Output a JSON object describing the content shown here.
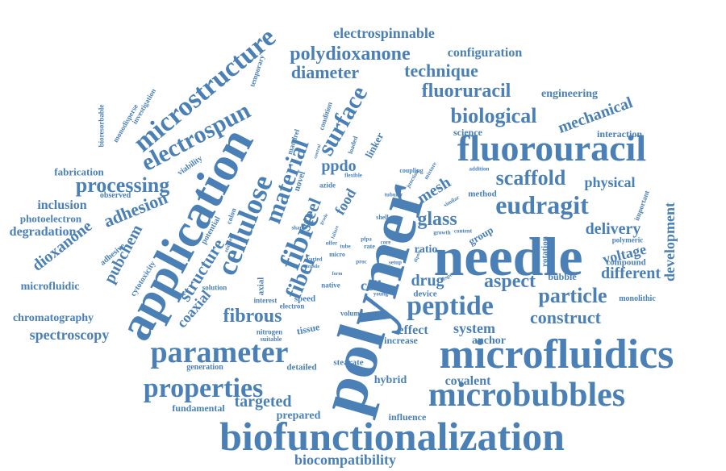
{
  "accent_color": "#4a80b5",
  "background": "#ffffff",
  "words": [
    {
      "text": "polymer"
    },
    {
      "text": "needle"
    },
    {
      "text": "application"
    },
    {
      "text": "microfluidics"
    },
    {
      "text": "biofunctionalization"
    },
    {
      "text": "fluorouracil"
    },
    {
      "text": "microbubbles"
    },
    {
      "text": "parameter"
    },
    {
      "text": "properties"
    },
    {
      "text": "cellulose"
    },
    {
      "text": "microstructure"
    },
    {
      "text": "peptide"
    },
    {
      "text": "fibre"
    },
    {
      "text": "material"
    },
    {
      "text": "eudragit"
    },
    {
      "text": "electrospun"
    },
    {
      "text": "surface"
    },
    {
      "text": "polydioxanone"
    },
    {
      "text": "biological"
    },
    {
      "text": "fluoruracil"
    },
    {
      "text": "scaffold"
    },
    {
      "text": "processing"
    },
    {
      "text": "particle"
    },
    {
      "text": "construct"
    },
    {
      "text": "fibrous"
    },
    {
      "text": "fiber"
    },
    {
      "text": "aspect"
    },
    {
      "text": "steel"
    },
    {
      "text": "adhesion"
    },
    {
      "text": "structure"
    },
    {
      "text": "technique"
    },
    {
      "text": "diameter"
    },
    {
      "text": "mechanical"
    },
    {
      "text": "glass"
    },
    {
      "text": "delivery"
    },
    {
      "text": "dioxanone"
    },
    {
      "text": "targeted"
    },
    {
      "text": "different"
    },
    {
      "text": "development"
    },
    {
      "text": "spectroscopy"
    },
    {
      "text": "biocompatibility"
    },
    {
      "text": "electrospinnable"
    },
    {
      "text": "configuration"
    },
    {
      "text": "mesh"
    },
    {
      "text": "physical"
    },
    {
      "text": "pubchem"
    },
    {
      "text": "drug"
    },
    {
      "text": "system"
    },
    {
      "text": "voltage"
    },
    {
      "text": "ppdo"
    },
    {
      "text": "food"
    },
    {
      "text": "coaxial"
    },
    {
      "text": "degradation"
    },
    {
      "text": "chromatography"
    },
    {
      "text": "inclusion"
    },
    {
      "text": "covalent"
    },
    {
      "text": "cell"
    },
    {
      "text": "ratio"
    },
    {
      "text": "effect"
    },
    {
      "text": "engineering"
    },
    {
      "text": "hybrid"
    },
    {
      "text": "prepared"
    },
    {
      "text": "anchor"
    },
    {
      "text": "microfluidic"
    },
    {
      "text": "photoelectron"
    },
    {
      "text": "fabrication"
    },
    {
      "text": "fundamental"
    },
    {
      "text": "increase"
    },
    {
      "text": "influence"
    },
    {
      "text": "detailed"
    },
    {
      "text": "tissue"
    },
    {
      "text": "group"
    },
    {
      "text": "bubble"
    },
    {
      "text": "interaction"
    },
    {
      "text": "science"
    },
    {
      "text": "linker"
    },
    {
      "text": "novel"
    },
    {
      "text": "compound"
    },
    {
      "text": "monolithic"
    },
    {
      "text": "generation"
    },
    {
      "text": "rotation"
    },
    {
      "text": "polymeric"
    },
    {
      "text": "important"
    },
    {
      "text": "method"
    },
    {
      "text": "device"
    },
    {
      "text": "nitrogen"
    },
    {
      "text": "suitable"
    },
    {
      "text": "stearate"
    },
    {
      "text": "volume"
    },
    {
      "text": "speed"
    },
    {
      "text": "electron"
    },
    {
      "text": "interest"
    },
    {
      "text": "axial"
    },
    {
      "text": "native"
    },
    {
      "text": "solution"
    },
    {
      "text": "potential"
    },
    {
      "text": "cytotoxicity"
    },
    {
      "text": "adhesive"
    },
    {
      "text": "observed"
    },
    {
      "text": "viability"
    },
    {
      "text": "monodisperse"
    },
    {
      "text": "investigation"
    },
    {
      "text": "bioresorbable"
    },
    {
      "text": "temporary"
    },
    {
      "text": "mandrel"
    },
    {
      "text": "condition"
    },
    {
      "text": "loaded"
    },
    {
      "text": "azide"
    },
    {
      "text": "flexible"
    },
    {
      "text": "tubular"
    },
    {
      "text": "shell"
    },
    {
      "text": "coupling"
    },
    {
      "text": "junction"
    },
    {
      "text": "mixture"
    },
    {
      "text": "addition"
    },
    {
      "text": "growth"
    },
    {
      "text": "content"
    },
    {
      "text": "setup"
    },
    {
      "text": "proc"
    },
    {
      "text": "micro"
    },
    {
      "text": "rate"
    },
    {
      "text": "core"
    },
    {
      "text": "offer"
    },
    {
      "text": "pfpa"
    },
    {
      "text": "tube"
    },
    {
      "text": "young"
    },
    {
      "text": "shape"
    },
    {
      "text": "studies"
    },
    {
      "text": "colon"
    },
    {
      "text": "grade"
    },
    {
      "text": "respect"
    },
    {
      "text": "similar"
    },
    {
      "text": "varied"
    },
    {
      "text": "tensile"
    },
    {
      "text": "failure"
    },
    {
      "text": "order"
    },
    {
      "text": "form"
    },
    {
      "text": "dipole"
    },
    {
      "text": "control"
    }
  ]
}
